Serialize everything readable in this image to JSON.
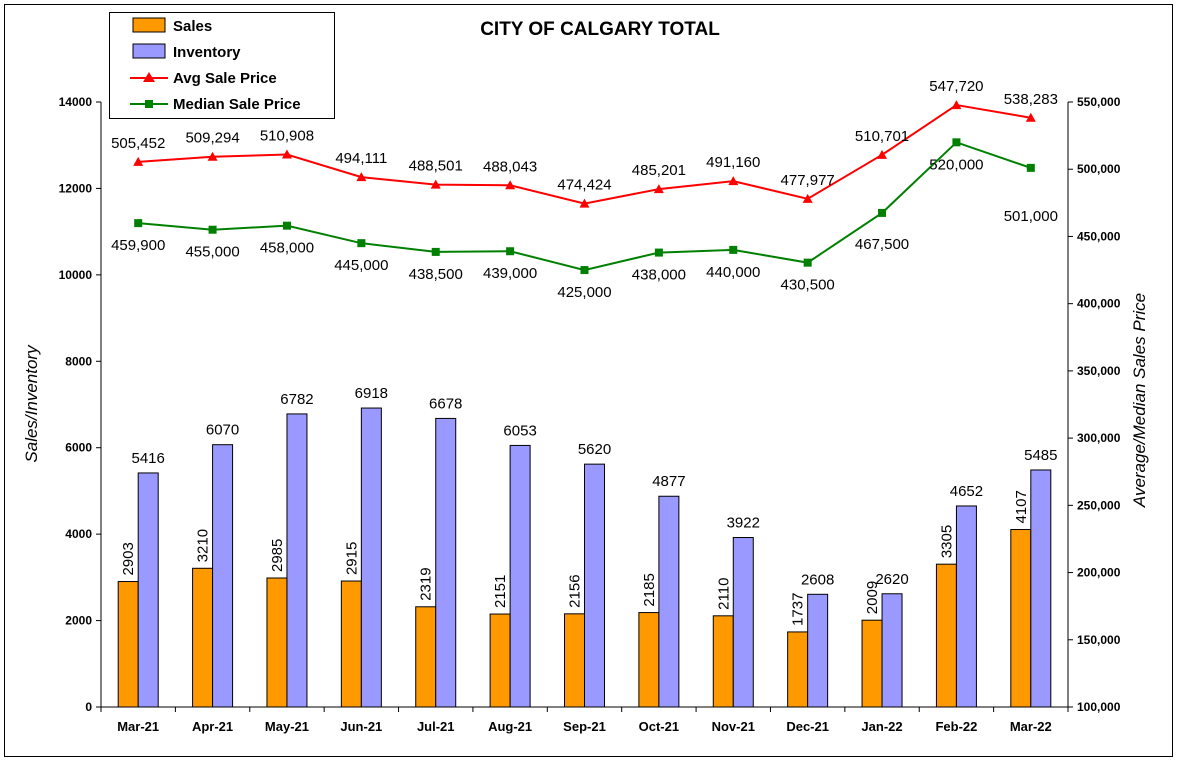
{
  "chart_data": {
    "type": "bar",
    "title": "CITY OF CALGARY TOTAL",
    "categories": [
      "Mar-21",
      "Apr-21",
      "May-21",
      "Jun-21",
      "Jul-21",
      "Aug-21",
      "Sep-21",
      "Oct-21",
      "Nov-21",
      "Dec-21",
      "Jan-22",
      "Feb-22",
      "Mar-22"
    ],
    "y_left": {
      "label": "Sales/Inventory",
      "lim": [
        0,
        14000
      ],
      "ticks": [
        0,
        2000,
        4000,
        6000,
        8000,
        10000,
        12000,
        14000
      ]
    },
    "y_right": {
      "label": "Average/Median Sales Price",
      "lim": [
        100000,
        550000
      ],
      "ticks": [
        100000,
        150000,
        200000,
        250000,
        300000,
        350000,
        400000,
        450000,
        500000,
        550000
      ],
      "tick_labels": [
        "100,000",
        "150,000",
        "200,000",
        "250,000",
        "300,000",
        "350,000",
        "400,000",
        "450,000",
        "500,000",
        "550,000"
      ]
    },
    "grid": false,
    "legend_position": "top-left",
    "colors": {
      "sales": "#ff9900",
      "inventory": "#9999ff",
      "avg": "#ff0000",
      "median": "#008000"
    },
    "series": [
      {
        "name": "Sales",
        "kind": "bar",
        "axis": "left",
        "values": [
          2903,
          3210,
          2985,
          2915,
          2319,
          2151,
          2156,
          2185,
          2110,
          1737,
          2009,
          3305,
          4107
        ],
        "labels": [
          "2903",
          "3210",
          "2985",
          "2915",
          "2319",
          "2151",
          "2156",
          "2185",
          "2110",
          "1737",
          "2009",
          "3305",
          "4107"
        ]
      },
      {
        "name": "Inventory",
        "kind": "bar",
        "axis": "left",
        "values": [
          5416,
          6070,
          6782,
          6918,
          6678,
          6053,
          5620,
          4877,
          3922,
          2608,
          2620,
          4652,
          5485
        ],
        "labels": [
          "5416",
          "6070",
          "6782",
          "6918",
          "6678",
          "6053",
          "5620",
          "4877",
          "3922",
          "2608",
          "2620",
          "4652",
          "5485"
        ]
      },
      {
        "name": "Avg Sale Price",
        "kind": "line",
        "axis": "right",
        "values": [
          505452,
          509294,
          510908,
          494111,
          488501,
          488043,
          474424,
          485201,
          491160,
          477977,
          510701,
          547720,
          538283
        ],
        "labels": [
          "505,452",
          "509,294",
          "510,908",
          "494,111",
          "488,501",
          "488,043",
          "474,424",
          "485,201",
          "491,160",
          "477,977",
          "510,701",
          "547,720",
          "538,283"
        ]
      },
      {
        "name": "Median Sale Price",
        "kind": "line",
        "axis": "right",
        "values": [
          459900,
          455000,
          458000,
          445000,
          438500,
          439000,
          425000,
          438000,
          440000,
          430500,
          467500,
          520000,
          501000
        ],
        "labels": [
          "459,900",
          "455,000",
          "458,000",
          "445,000",
          "438,500",
          "439,000",
          "425,000",
          "438,000",
          "440,000",
          "430,500",
          "467,500",
          "520,000",
          "501,000"
        ]
      }
    ]
  }
}
